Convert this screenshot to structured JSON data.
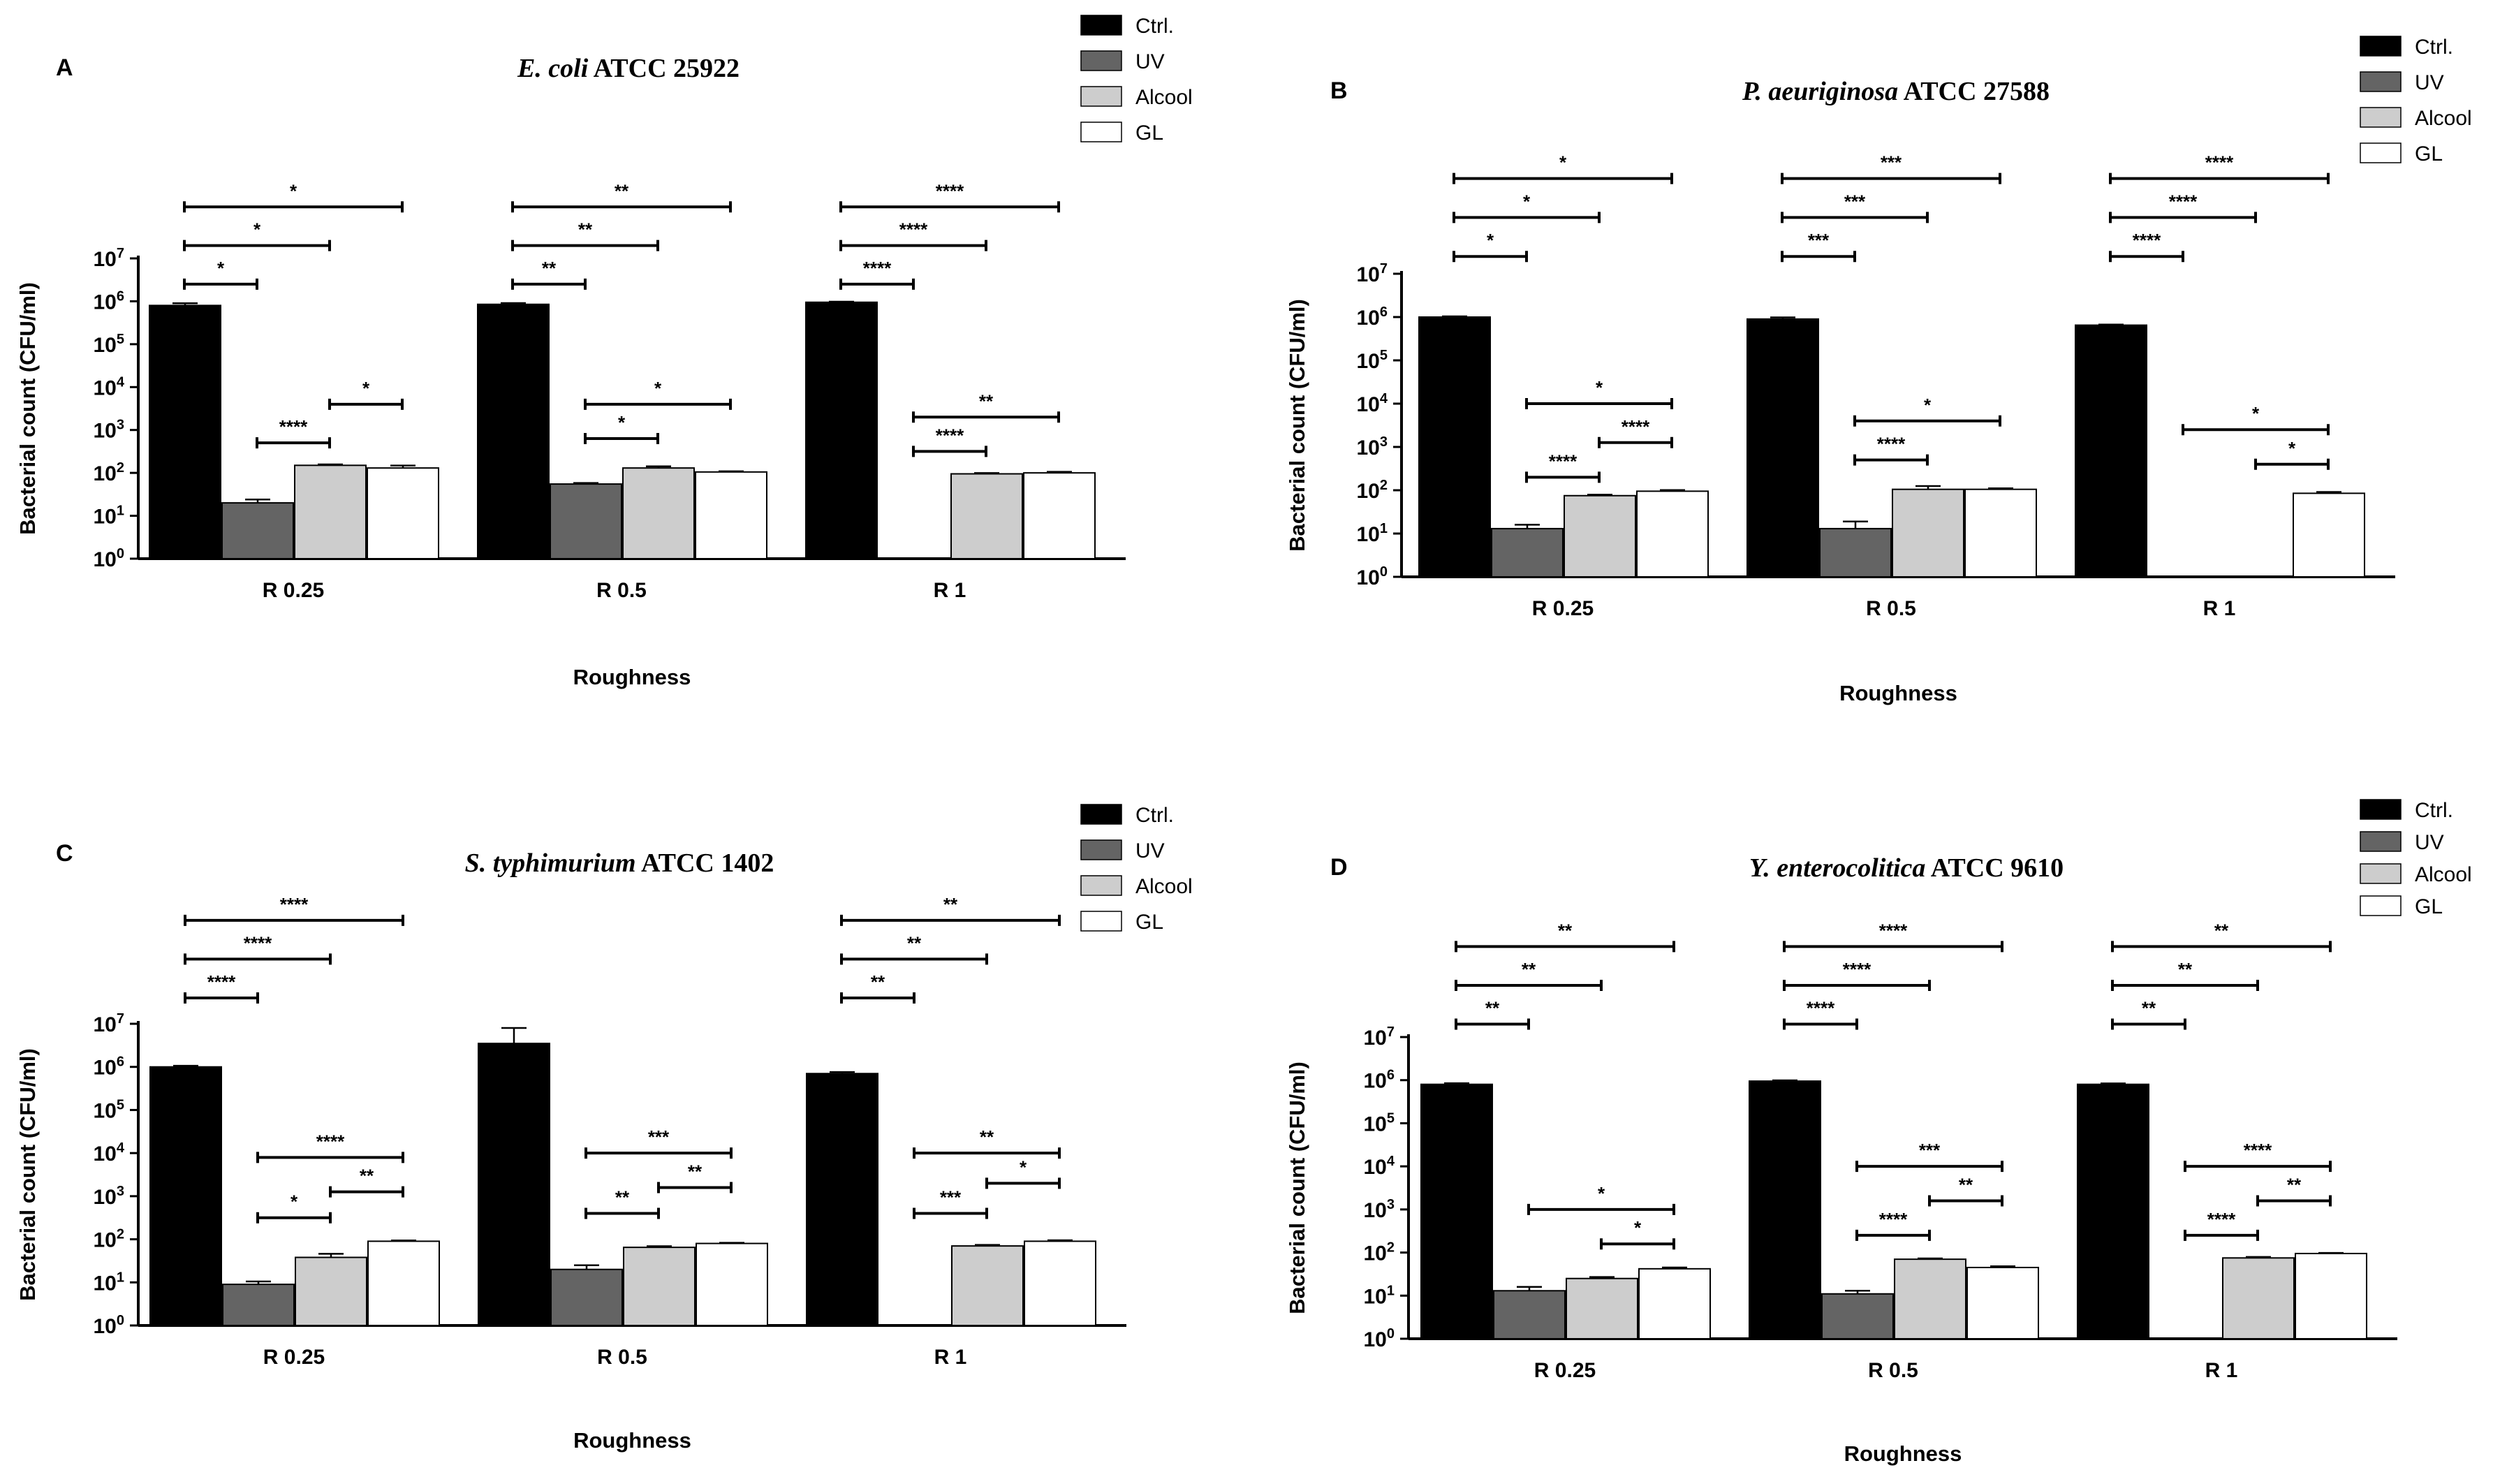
{
  "chart_data": [
    {
      "type": "bar",
      "panel": "A",
      "title_italic": "E. coli",
      "title_rest": " ATCC 25922",
      "xlabel": "Roughness",
      "ylabel": "Bacterial count (CFU/ml)",
      "yscale": "log",
      "ylim": [
        1,
        10000000
      ],
      "categories": [
        "R 0.25",
        "R 0.5",
        "R 1"
      ],
      "series": [
        {
          "name": "Ctrl.",
          "color": "#000000",
          "values": [
            800000,
            850000,
            950000
          ],
          "errors": [
            100000,
            60000,
            30000
          ]
        },
        {
          "name": "UV",
          "color": "#646464",
          "values": [
            20,
            55,
            null
          ],
          "errors": [
            4,
            3,
            null
          ]
        },
        {
          "name": "Alcool",
          "color": "#cdcdcd",
          "values": [
            150,
            130,
            95
          ],
          "errors": [
            8,
            12,
            4
          ]
        },
        {
          "name": "GL",
          "color": "#ffffff",
          "values": [
            130,
            105,
            100
          ],
          "errors": [
            18,
            4,
            6
          ]
        }
      ],
      "significance": [
        {
          "category": 0,
          "from": 0,
          "to": 1,
          "label": "*",
          "level": 6.4
        },
        {
          "category": 0,
          "from": 0,
          "to": 2,
          "label": "*",
          "level": 7.3
        },
        {
          "category": 0,
          "from": 0,
          "to": 3,
          "label": "*",
          "level": 8.2
        },
        {
          "category": 0,
          "from": 2,
          "to": 3,
          "label": "*",
          "level": 3.6
        },
        {
          "category": 0,
          "from": 1,
          "to": 2,
          "label": "****",
          "level": 2.7
        },
        {
          "category": 1,
          "from": 0,
          "to": 1,
          "label": "**",
          "level": 6.4
        },
        {
          "category": 1,
          "from": 0,
          "to": 2,
          "label": "**",
          "level": 7.3
        },
        {
          "category": 1,
          "from": 0,
          "to": 3,
          "label": "**",
          "level": 8.2
        },
        {
          "category": 1,
          "from": 1,
          "to": 3,
          "label": "*",
          "level": 3.6
        },
        {
          "category": 1,
          "from": 1,
          "to": 2,
          "label": "*",
          "level": 2.8
        },
        {
          "category": 2,
          "from": 0,
          "to": 1,
          "label": "****",
          "level": 6.4
        },
        {
          "category": 2,
          "from": 0,
          "to": 2,
          "label": "****",
          "level": 7.3
        },
        {
          "category": 2,
          "from": 0,
          "to": 3,
          "label": "****",
          "level": 8.2
        },
        {
          "category": 2,
          "from": 1,
          "to": 3,
          "label": "**",
          "level": 3.3
        },
        {
          "category": 2,
          "from": 1,
          "to": 2,
          "label": "****",
          "level": 2.5
        }
      ]
    },
    {
      "type": "bar",
      "panel": "B",
      "title_italic": "P. aeuriginosa",
      "title_rest": " ATCC 27588",
      "xlabel": "Roughness",
      "ylabel": "Bacterial count (CFU/ml)",
      "yscale": "log",
      "ylim": [
        1,
        10000000
      ],
      "categories": [
        "R 0.25",
        "R 0.5",
        "R 1"
      ],
      "series": [
        {
          "name": "Ctrl.",
          "color": "#000000",
          "values": [
            1000000,
            900000,
            650000
          ],
          "errors": [
            40000,
            80000,
            20000
          ]
        },
        {
          "name": "UV",
          "color": "#646464",
          "values": [
            13,
            13,
            null
          ],
          "errors": [
            3,
            6,
            null
          ]
        },
        {
          "name": "Alcool",
          "color": "#cdcdcd",
          "values": [
            75,
            105,
            null
          ],
          "errors": [
            4,
            20,
            null
          ]
        },
        {
          "name": "GL",
          "color": "#ffffff",
          "values": [
            95,
            105,
            85
          ],
          "errors": [
            6,
            6,
            6
          ]
        }
      ],
      "significance": [
        {
          "category": 0,
          "from": 0,
          "to": 1,
          "label": "*",
          "level": 7.4
        },
        {
          "category": 0,
          "from": 0,
          "to": 2,
          "label": "*",
          "level": 8.3
        },
        {
          "category": 0,
          "from": 0,
          "to": 3,
          "label": "*",
          "level": 9.2
        },
        {
          "category": 0,
          "from": 1,
          "to": 3,
          "label": "*",
          "level": 4.0
        },
        {
          "category": 0,
          "from": 2,
          "to": 3,
          "label": "****",
          "level": 3.1
        },
        {
          "category": 0,
          "from": 1,
          "to": 2,
          "label": "****",
          "level": 2.3
        },
        {
          "category": 1,
          "from": 0,
          "to": 1,
          "label": "***",
          "level": 7.4
        },
        {
          "category": 1,
          "from": 0,
          "to": 2,
          "label": "***",
          "level": 8.3
        },
        {
          "category": 1,
          "from": 0,
          "to": 3,
          "label": "***",
          "level": 9.2
        },
        {
          "category": 1,
          "from": 1,
          "to": 3,
          "label": "*",
          "level": 3.6
        },
        {
          "category": 1,
          "from": 1,
          "to": 2,
          "label": "****",
          "level": 2.7
        },
        {
          "category": 2,
          "from": 0,
          "to": 1,
          "label": "****",
          "level": 7.4
        },
        {
          "category": 2,
          "from": 0,
          "to": 2,
          "label": "****",
          "level": 8.3
        },
        {
          "category": 2,
          "from": 0,
          "to": 3,
          "label": "****",
          "level": 9.2
        },
        {
          "category": 2,
          "from": 1,
          "to": 3,
          "label": "*",
          "level": 3.4
        },
        {
          "category": 2,
          "from": 2,
          "to": 3,
          "label": "*",
          "level": 2.6
        }
      ]
    },
    {
      "type": "bar",
      "panel": "C",
      "title_italic": "S. typhimurium",
      "title_rest": " ATCC 1402",
      "xlabel": "Roughness",
      "ylabel": "Bacterial count (CFU/ml)",
      "yscale": "log",
      "ylim": [
        1,
        10000000
      ],
      "categories": [
        "R 0.25",
        "R 0.5",
        "R 1"
      ],
      "series": [
        {
          "name": "Ctrl.",
          "color": "#000000",
          "values": [
            1000000,
            3500000,
            700000
          ],
          "errors": [
            60000,
            4500000,
            60000
          ]
        },
        {
          "name": "UV",
          "color": "#646464",
          "values": [
            9,
            20,
            null
          ],
          "errors": [
            1.5,
            5,
            null
          ]
        },
        {
          "name": "Alcool",
          "color": "#cdcdcd",
          "values": [
            38,
            65,
            70
          ],
          "errors": [
            8,
            4,
            4
          ]
        },
        {
          "name": "GL",
          "color": "#ffffff",
          "values": [
            90,
            80,
            90
          ],
          "errors": [
            4,
            3,
            5
          ]
        }
      ],
      "significance": [
        {
          "category": 0,
          "from": 0,
          "to": 1,
          "label": "****",
          "level": 7.6
        },
        {
          "category": 0,
          "from": 0,
          "to": 2,
          "label": "****",
          "level": 8.5
        },
        {
          "category": 0,
          "from": 0,
          "to": 3,
          "label": "****",
          "level": 9.4
        },
        {
          "category": 0,
          "from": 1,
          "to": 3,
          "label": "****",
          "level": 3.9
        },
        {
          "category": 0,
          "from": 2,
          "to": 3,
          "label": "**",
          "level": 3.1
        },
        {
          "category": 0,
          "from": 1,
          "to": 2,
          "label": "*",
          "level": 2.5
        },
        {
          "category": 1,
          "from": 1,
          "to": 3,
          "label": "***",
          "level": 4.0
        },
        {
          "category": 1,
          "from": 2,
          "to": 3,
          "label": "**",
          "level": 3.2
        },
        {
          "category": 1,
          "from": 1,
          "to": 2,
          "label": "**",
          "level": 2.6
        },
        {
          "category": 2,
          "from": 0,
          "to": 1,
          "label": "**",
          "level": 7.6
        },
        {
          "category": 2,
          "from": 0,
          "to": 2,
          "label": "**",
          "level": 8.5
        },
        {
          "category": 2,
          "from": 0,
          "to": 3,
          "label": "**",
          "level": 9.4
        },
        {
          "category": 2,
          "from": 1,
          "to": 3,
          "label": "**",
          "level": 4.0
        },
        {
          "category": 2,
          "from": 2,
          "to": 3,
          "label": "*",
          "level": 3.3
        },
        {
          "category": 2,
          "from": 1,
          "to": 2,
          "label": "***",
          "level": 2.6
        }
      ]
    },
    {
      "type": "bar",
      "panel": "D",
      "title_italic": "Y. enterocolitica",
      "title_rest": " ATCC 9610",
      "xlabel": "Roughness",
      "ylabel": "Bacterial count (CFU/ml)",
      "yscale": "log",
      "ylim": [
        1,
        10000000
      ],
      "categories": [
        "R 0.25",
        "R 0.5",
        "R 1"
      ],
      "series": [
        {
          "name": "Ctrl.",
          "color": "#000000",
          "values": [
            800000,
            950000,
            800000
          ],
          "errors": [
            50000,
            40000,
            40000
          ]
        },
        {
          "name": "UV",
          "color": "#646464",
          "values": [
            13,
            11,
            null
          ],
          "errors": [
            3,
            2,
            null
          ]
        },
        {
          "name": "Alcool",
          "color": "#cdcdcd",
          "values": [
            25,
            70,
            75
          ],
          "errors": [
            2,
            3,
            4
          ]
        },
        {
          "name": "GL",
          "color": "#ffffff",
          "values": [
            42,
            45,
            95
          ],
          "errors": [
            3,
            3,
            3
          ]
        }
      ],
      "significance": [
        {
          "category": 0,
          "from": 0,
          "to": 1,
          "label": "**",
          "level": 7.3
        },
        {
          "category": 0,
          "from": 0,
          "to": 2,
          "label": "**",
          "level": 8.2
        },
        {
          "category": 0,
          "from": 0,
          "to": 3,
          "label": "**",
          "level": 9.1
        },
        {
          "category": 0,
          "from": 1,
          "to": 3,
          "label": "*",
          "level": 3.0
        },
        {
          "category": 0,
          "from": 2,
          "to": 3,
          "label": "*",
          "level": 2.2
        },
        {
          "category": 1,
          "from": 0,
          "to": 1,
          "label": "****",
          "level": 7.3
        },
        {
          "category": 1,
          "from": 0,
          "to": 2,
          "label": "****",
          "level": 8.2
        },
        {
          "category": 1,
          "from": 0,
          "to": 3,
          "label": "****",
          "level": 9.1
        },
        {
          "category": 1,
          "from": 1,
          "to": 3,
          "label": "***",
          "level": 4.0
        },
        {
          "category": 1,
          "from": 2,
          "to": 3,
          "label": "**",
          "level": 3.2
        },
        {
          "category": 1,
          "from": 1,
          "to": 2,
          "label": "****",
          "level": 2.4
        },
        {
          "category": 2,
          "from": 0,
          "to": 1,
          "label": "**",
          "level": 7.3
        },
        {
          "category": 2,
          "from": 0,
          "to": 2,
          "label": "**",
          "level": 8.2
        },
        {
          "category": 2,
          "from": 0,
          "to": 3,
          "label": "**",
          "level": 9.1
        },
        {
          "category": 2,
          "from": 1,
          "to": 3,
          "label": "****",
          "level": 4.0
        },
        {
          "category": 2,
          "from": 2,
          "to": 3,
          "label": "**",
          "level": 3.2
        },
        {
          "category": 2,
          "from": 1,
          "to": 2,
          "label": "****",
          "level": 2.4
        }
      ]
    }
  ]
}
